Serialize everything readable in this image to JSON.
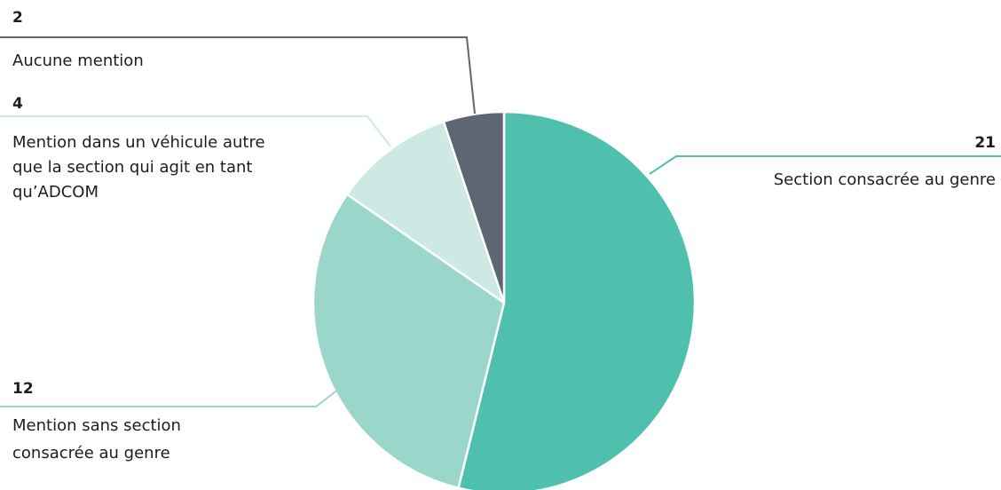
{
  "chart_data": {
    "type": "pie",
    "title": "",
    "slices": [
      {
        "label": "Section consacrée au genre",
        "value": 21,
        "color": "#4ec0ad"
      },
      {
        "label": "Mention sans section consacrée au genre",
        "value": 12,
        "color": "#9bd6cb"
      },
      {
        "label": "Mention dans un véhicule autre que la section qui agit en tant qu’ADCOM",
        "value": 4,
        "color": "#cce9e4"
      },
      {
        "label": "Aucune mention",
        "value": 2,
        "color": "#5f6673"
      }
    ],
    "label_lines": [
      {
        "value": "21",
        "lines": [
          "Section consacrée au genre"
        ]
      },
      {
        "value": "12",
        "lines": [
          "Mention sans section",
          "consacrée au genre"
        ]
      },
      {
        "value": "4",
        "lines": [
          "Mention dans un véhicule autre",
          "que la section qui agit en tant",
          "qu’ADCOM"
        ]
      },
      {
        "value": "2",
        "lines": [
          "Aucune mention"
        ]
      }
    ],
    "legend": "none"
  }
}
